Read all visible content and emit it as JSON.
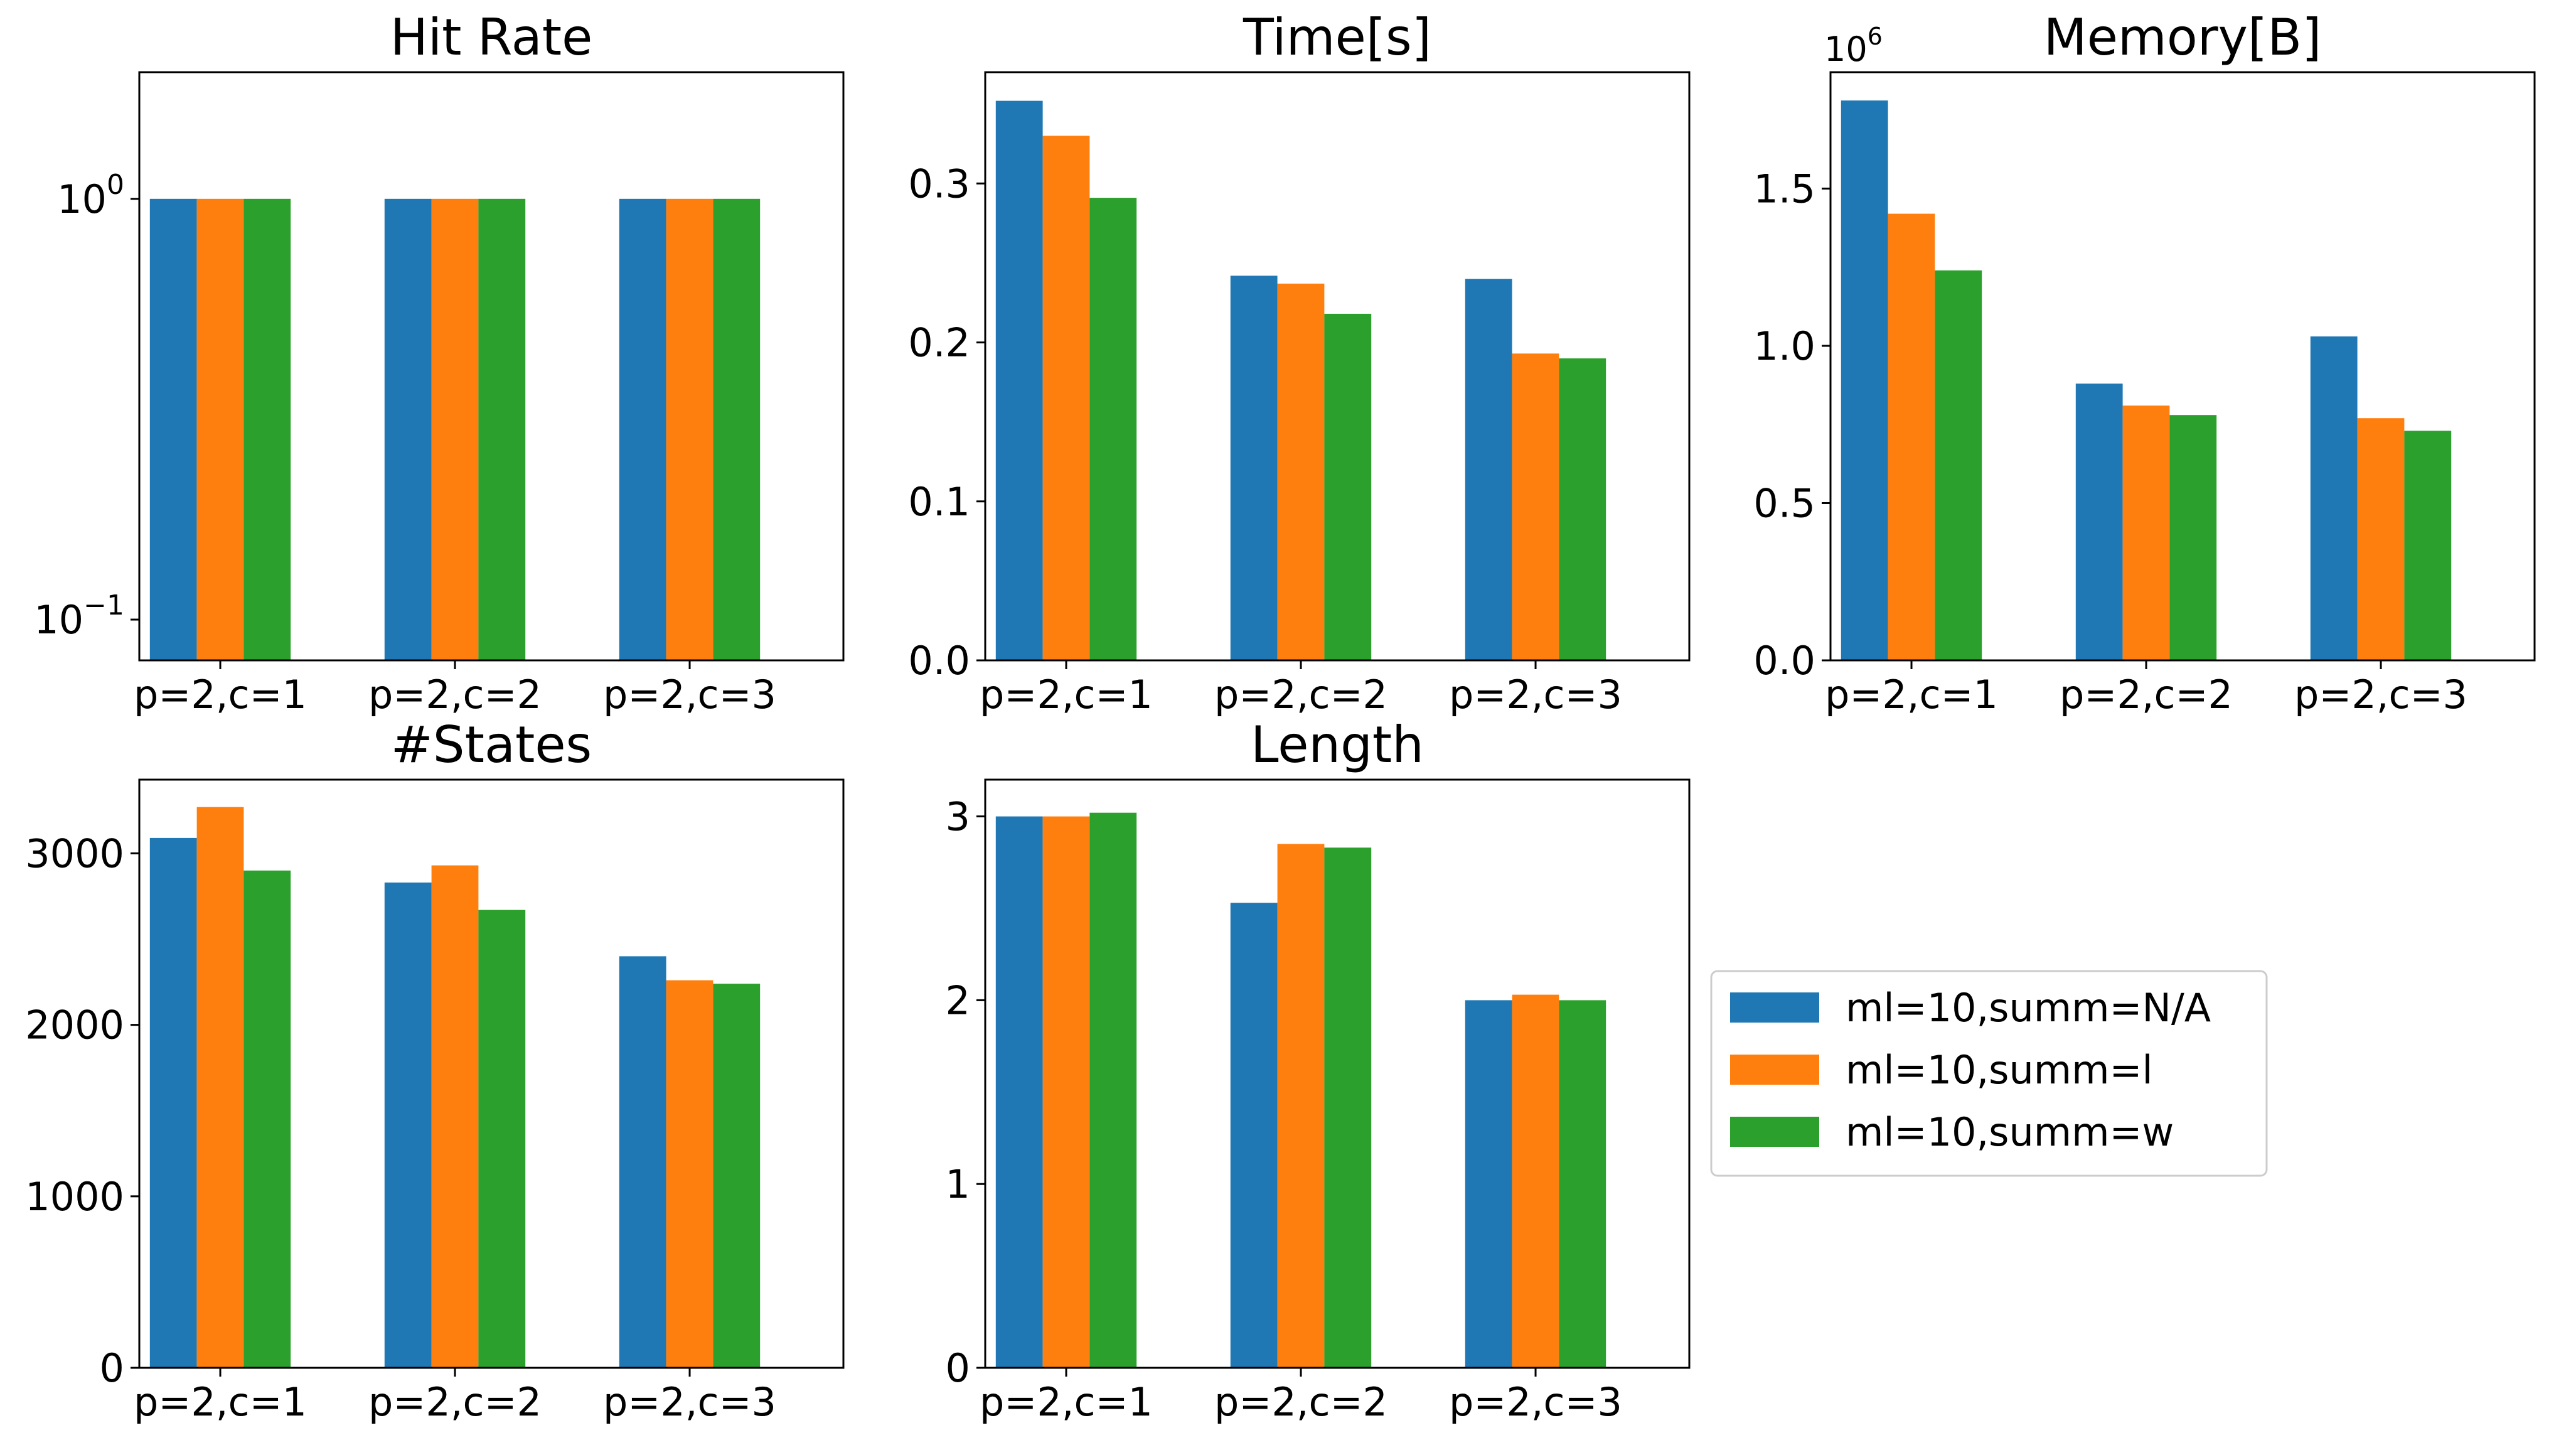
{
  "chart_data": [
    {
      "type": "bar",
      "title": "Hit Rate",
      "yscale": "log",
      "categories": [
        "p=2,c=1",
        "p=2,c=2",
        "p=2,c=3"
      ],
      "ylim": [
        0.08,
        2.0
      ],
      "yticks": [
        {
          "value": 0.1,
          "base": "10",
          "exp": "−1"
        },
        {
          "value": 1,
          "base": "10",
          "exp": "0"
        }
      ],
      "series": [
        {
          "name": "ml=10,summ=N/A",
          "values": [
            1.0,
            1.0,
            1.0
          ]
        },
        {
          "name": "ml=10,summ=l",
          "values": [
            1.0,
            1.0,
            1.0
          ]
        },
        {
          "name": "ml=10,summ=w",
          "values": [
            1.0,
            1.0,
            1.0
          ]
        }
      ]
    },
    {
      "type": "bar",
      "title": "Time[s]",
      "yscale": "linear",
      "categories": [
        "p=2,c=1",
        "p=2,c=2",
        "p=2,c=3"
      ],
      "ylim": [
        0,
        0.37
      ],
      "yticks": [
        {
          "value": 0,
          "label": "0.0"
        },
        {
          "value": 0.1,
          "label": "0.1"
        },
        {
          "value": 0.2,
          "label": "0.2"
        },
        {
          "value": 0.3,
          "label": "0.3"
        }
      ],
      "series": [
        {
          "name": "ml=10,summ=N/A",
          "values": [
            0.352,
            0.242,
            0.24
          ]
        },
        {
          "name": "ml=10,summ=l",
          "values": [
            0.33,
            0.237,
            0.193
          ]
        },
        {
          "name": "ml=10,summ=w",
          "values": [
            0.291,
            0.218,
            0.19
          ]
        }
      ]
    },
    {
      "type": "bar",
      "title": "Memory[B]",
      "yscale": "linear",
      "offset_text": {
        "base": "10",
        "exp": "6"
      },
      "categories": [
        "p=2,c=1",
        "p=2,c=2",
        "p=2,c=3"
      ],
      "ylim": [
        0,
        1.87
      ],
      "yticks": [
        {
          "value": 0,
          "label": "0.0"
        },
        {
          "value": 0.5,
          "label": "0.5"
        },
        {
          "value": 1.0,
          "label": "1.0"
        },
        {
          "value": 1.5,
          "label": "1.5"
        }
      ],
      "series": [
        {
          "name": "ml=10,summ=N/A",
          "values": [
            1.78,
            0.88,
            1.03
          ]
        },
        {
          "name": "ml=10,summ=l",
          "values": [
            1.42,
            0.81,
            0.77
          ]
        },
        {
          "name": "ml=10,summ=w",
          "values": [
            1.24,
            0.78,
            0.73
          ]
        }
      ]
    },
    {
      "type": "bar",
      "title": "#States",
      "yscale": "linear",
      "categories": [
        "p=2,c=1",
        "p=2,c=2",
        "p=2,c=3"
      ],
      "ylim": [
        0,
        3430
      ],
      "yticks": [
        {
          "value": 0,
          "label": "0"
        },
        {
          "value": 1000,
          "label": "1000"
        },
        {
          "value": 2000,
          "label": "2000"
        },
        {
          "value": 3000,
          "label": "3000"
        }
      ],
      "series": [
        {
          "name": "ml=10,summ=N/A",
          "values": [
            3090,
            2830,
            2400
          ]
        },
        {
          "name": "ml=10,summ=l",
          "values": [
            3270,
            2930,
            2260
          ]
        },
        {
          "name": "ml=10,summ=w",
          "values": [
            2900,
            2670,
            2240
          ]
        }
      ]
    },
    {
      "type": "bar",
      "title": "Length",
      "yscale": "linear",
      "categories": [
        "p=2,c=1",
        "p=2,c=2",
        "p=2,c=3"
      ],
      "ylim": [
        0,
        3.2
      ],
      "yticks": [
        {
          "value": 0,
          "label": "0"
        },
        {
          "value": 1,
          "label": "1"
        },
        {
          "value": 2,
          "label": "2"
        },
        {
          "value": 3,
          "label": "3"
        }
      ],
      "series": [
        {
          "name": "ml=10,summ=N/A",
          "values": [
            3.0,
            2.53,
            2.0
          ]
        },
        {
          "name": "ml=10,summ=l",
          "values": [
            3.0,
            2.85,
            2.03
          ]
        },
        {
          "name": "ml=10,summ=w",
          "values": [
            3.02,
            2.83,
            2.0
          ]
        }
      ]
    }
  ],
  "legend": {
    "placement": "right-of-bottom-row",
    "items": [
      {
        "label": "ml=10,summ=N/A",
        "color": "#1f77b4"
      },
      {
        "label": "ml=10,summ=l",
        "color": "#ff7f0e"
      },
      {
        "label": "ml=10,summ=w",
        "color": "#2ca02c"
      }
    ]
  },
  "colors": {
    "series": [
      "#1f77b4",
      "#ff7f0e",
      "#2ca02c"
    ]
  }
}
